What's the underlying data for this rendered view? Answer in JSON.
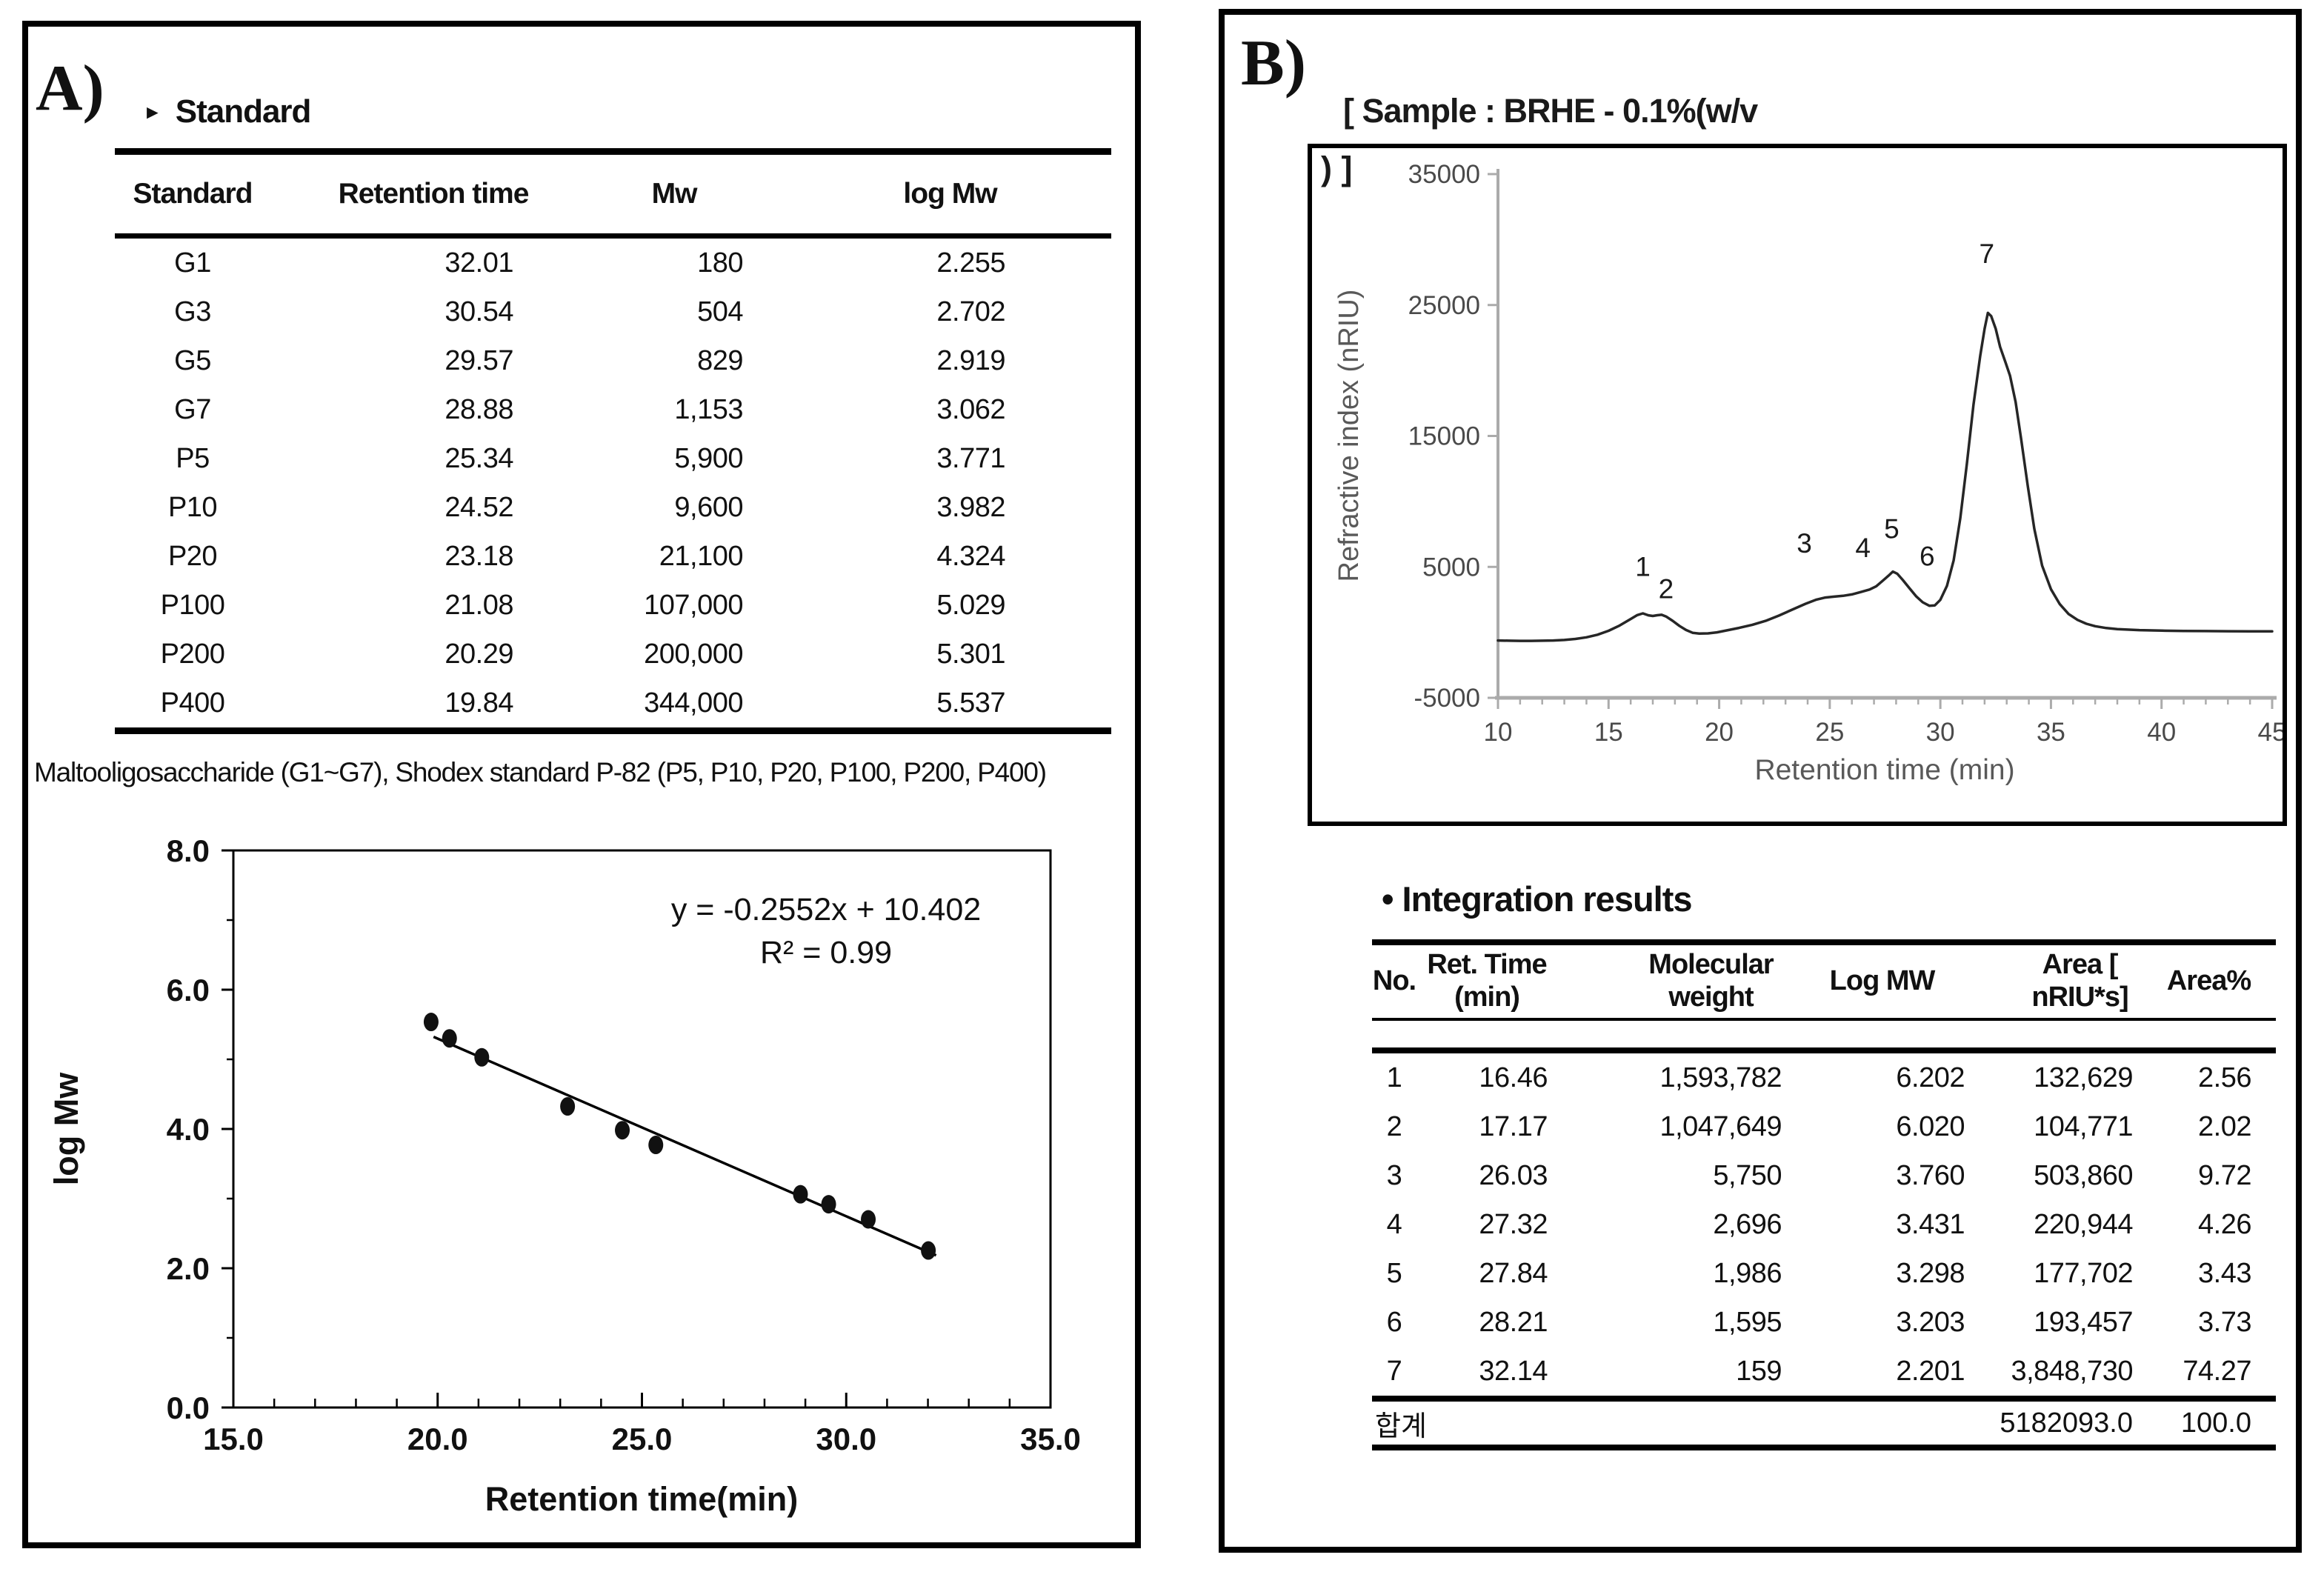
{
  "colors": {
    "text": "#111111",
    "curve": "#262626",
    "axis_gray": "#ababab",
    "tick_text": "#4a4a4a",
    "axis_title_gray": "#595959",
    "scatter_ink": "#000000"
  },
  "panelA": {
    "label": "A)",
    "heading_marker": "►",
    "heading": "Standard",
    "table": {
      "headers": [
        "Standard",
        "Retention time",
        "Mw",
        "log Mw"
      ],
      "rows": [
        [
          "G1",
          "32.01",
          "180",
          "2.255"
        ],
        [
          "G3",
          "30.54",
          "504",
          "2.702"
        ],
        [
          "G5",
          "29.57",
          "829",
          "2.919"
        ],
        [
          "G7",
          "28.88",
          "1,153",
          "3.062"
        ],
        [
          "P5",
          "25.34",
          "5,900",
          "3.771"
        ],
        [
          "P10",
          "24.52",
          "9,600",
          "3.982"
        ],
        [
          "P20",
          "23.18",
          "21,100",
          "4.324"
        ],
        [
          "P100",
          "21.08",
          "107,000",
          "5.029"
        ],
        [
          "P200",
          "20.29",
          "200,000",
          "5.301"
        ],
        [
          "P400",
          "19.84",
          "344,000",
          "5.537"
        ]
      ]
    },
    "footnote": "Maltooligosaccharide (G1~G7), Shodex standard P-82 (P5, P10, P20, P100, P200, P400)"
  },
  "panelB": {
    "label": "B)",
    "sample_line1": "[ Sample : BRHE - 0.1%(w/v",
    "sample_line2": ") ]",
    "integration_title": "• Integration results",
    "table": {
      "headers": [
        [
          "No."
        ],
        [
          "Ret. Time",
          "(min)"
        ],
        [
          "Molecular weight"
        ],
        [
          "Log MW"
        ],
        [
          "Area [",
          "nRIU*s]"
        ],
        [
          "Area%"
        ]
      ],
      "rows": [
        [
          "1",
          "16.46",
          "1,593,782",
          "6.202",
          "132,629",
          "2.56"
        ],
        [
          "2",
          "17.17",
          "1,047,649",
          "6.020",
          "104,771",
          "2.02"
        ],
        [
          "3",
          "26.03",
          "5,750",
          "3.760",
          "503,860",
          "9.72"
        ],
        [
          "4",
          "27.32",
          "2,696",
          "3.431",
          "220,944",
          "4.26"
        ],
        [
          "5",
          "27.84",
          "1,986",
          "3.298",
          "177,702",
          "3.43"
        ],
        [
          "6",
          "28.21",
          "1,595",
          "3.203",
          "193,457",
          "3.73"
        ],
        [
          "7",
          "32.14",
          "159",
          "2.201",
          "3,848,730",
          "74.27"
        ]
      ],
      "total": {
        "label": "합계",
        "area": "5182093.0",
        "area_pct": "100.0"
      }
    }
  },
  "chart_data": [
    {
      "type": "scatter",
      "title": "",
      "xlabel": "Retention time(min)",
      "ylabel": "log Mw",
      "xlim": [
        15.0,
        35.0
      ],
      "ylim": [
        0.0,
        8.0
      ],
      "x_ticks": [
        15.0,
        20.0,
        25.0,
        30.0,
        35.0
      ],
      "y_ticks": [
        0.0,
        2.0,
        4.0,
        6.0,
        8.0
      ],
      "x_tick_labels": [
        "15.0",
        "20.0",
        "25.0",
        "30.0",
        "35.0"
      ],
      "y_tick_labels": [
        "0.0",
        "2.0",
        "4.0",
        "6.0",
        "8.0"
      ],
      "x_minor_step": 1.0,
      "y_minor_step": 1.0,
      "grid": false,
      "points": [
        [
          32.01,
          2.255
        ],
        [
          30.54,
          2.702
        ],
        [
          29.57,
          2.919
        ],
        [
          28.88,
          3.062
        ],
        [
          25.34,
          3.771
        ],
        [
          24.52,
          3.982
        ],
        [
          23.18,
          4.324
        ],
        [
          21.08,
          5.029
        ],
        [
          20.29,
          5.301
        ],
        [
          19.84,
          5.537
        ]
      ],
      "trendline": {
        "slope": -0.2552,
        "intercept": 10.402,
        "x_start": 19.9,
        "x_end": 32.2,
        "equation_label": "y = -0.2552x + 10.402",
        "r2_label": "R² = 0.99"
      }
    },
    {
      "type": "line",
      "title": "",
      "xlabel": "Retention time (min)",
      "ylabel": "Refractive index (nRIU)",
      "xlim": [
        10,
        45
      ],
      "ylim": [
        -5000,
        35000
      ],
      "x_ticks": [
        10,
        15,
        20,
        25,
        30,
        35,
        40,
        45
      ],
      "y_ticks": [
        -5000,
        5000,
        15000,
        25000,
        35000
      ],
      "x_minor_step": 1,
      "grid": false,
      "peak_labels": [
        {
          "label": "1",
          "x": 16.55,
          "y": 4300
        },
        {
          "label": "2",
          "x": 17.6,
          "y": 2600
        },
        {
          "label": "3",
          "x": 23.85,
          "y": 6100
        },
        {
          "label": "4",
          "x": 26.5,
          "y": 5750
        },
        {
          "label": "5",
          "x": 27.8,
          "y": 7200
        },
        {
          "label": "6",
          "x": 29.4,
          "y": 5100
        },
        {
          "label": "7",
          "x": 32.1,
          "y": 28200
        }
      ],
      "curve": [
        [
          10,
          -620
        ],
        [
          10.5,
          -640
        ],
        [
          11,
          -650
        ],
        [
          11.5,
          -650
        ],
        [
          12,
          -640
        ],
        [
          12.5,
          -620
        ],
        [
          13,
          -580
        ],
        [
          13.5,
          -500
        ],
        [
          14,
          -380
        ],
        [
          14.5,
          -180
        ],
        [
          15,
          120
        ],
        [
          15.5,
          520
        ],
        [
          16,
          1020
        ],
        [
          16.3,
          1320
        ],
        [
          16.55,
          1450
        ],
        [
          16.8,
          1300
        ],
        [
          17,
          1250
        ],
        [
          17.2,
          1310
        ],
        [
          17.4,
          1340
        ],
        [
          17.6,
          1210
        ],
        [
          17.9,
          880
        ],
        [
          18.2,
          500
        ],
        [
          18.5,
          180
        ],
        [
          18.8,
          -30
        ],
        [
          19.1,
          -90
        ],
        [
          19.5,
          -80
        ],
        [
          19.9,
          0
        ],
        [
          20.4,
          170
        ],
        [
          20.9,
          340
        ],
        [
          21.5,
          580
        ],
        [
          22.1,
          880
        ],
        [
          22.7,
          1280
        ],
        [
          23.3,
          1730
        ],
        [
          23.9,
          2180
        ],
        [
          24.4,
          2500
        ],
        [
          24.8,
          2660
        ],
        [
          25.2,
          2730
        ],
        [
          25.6,
          2790
        ],
        [
          26,
          2900
        ],
        [
          26.4,
          3080
        ],
        [
          26.8,
          3270
        ],
        [
          27.1,
          3520
        ],
        [
          27.4,
          3950
        ],
        [
          27.7,
          4400
        ],
        [
          27.85,
          4640
        ],
        [
          28.05,
          4480
        ],
        [
          28.3,
          4000
        ],
        [
          28.6,
          3380
        ],
        [
          28.9,
          2760
        ],
        [
          29.2,
          2300
        ],
        [
          29.5,
          2030
        ],
        [
          29.75,
          2060
        ],
        [
          30,
          2480
        ],
        [
          30.3,
          3560
        ],
        [
          30.6,
          5500
        ],
        [
          30.9,
          8700
        ],
        [
          31.2,
          12900
        ],
        [
          31.5,
          17400
        ],
        [
          31.8,
          21100
        ],
        [
          32,
          23200
        ],
        [
          32.15,
          24400
        ],
        [
          32.3,
          24150
        ],
        [
          32.5,
          23200
        ],
        [
          32.7,
          21800
        ],
        [
          32.95,
          20600
        ],
        [
          33.15,
          19600
        ],
        [
          33.4,
          17600
        ],
        [
          33.65,
          14800
        ],
        [
          33.95,
          11200
        ],
        [
          34.25,
          7900
        ],
        [
          34.6,
          5100
        ],
        [
          35,
          3300
        ],
        [
          35.4,
          2150
        ],
        [
          35.8,
          1400
        ],
        [
          36.2,
          950
        ],
        [
          36.6,
          660
        ],
        [
          37,
          470
        ],
        [
          37.5,
          330
        ],
        [
          38,
          250
        ],
        [
          39,
          170
        ],
        [
          40,
          130
        ],
        [
          41,
          110
        ],
        [
          42,
          95
        ],
        [
          43,
          85
        ],
        [
          44,
          80
        ],
        [
          45,
          80
        ]
      ]
    }
  ]
}
